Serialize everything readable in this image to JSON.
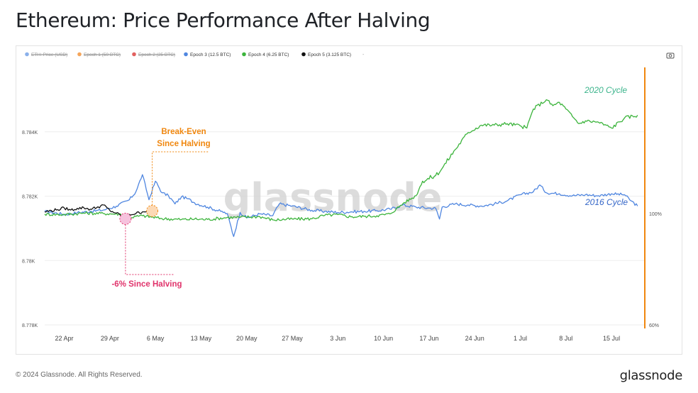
{
  "title": "Ethereum: Price Performance After Halving",
  "footer": {
    "copyright": "© 2024 Glassnode. All Rights Reserved.",
    "logo": "glassnode"
  },
  "watermark": "glassnode",
  "toolbar": {
    "camera_icon": "camera-icon"
  },
  "colors": {
    "epoch1": "#f5a55a",
    "epoch2": "#e2605f",
    "epoch3": "#4f86e0",
    "epoch4": "#3cb43c",
    "epoch5": "#111111",
    "eth": "#8ab0ea",
    "orange": "#f0870f",
    "pink": "#e0336b",
    "cycle2020": "#3cb48c",
    "cycle2016": "#3466c8"
  },
  "annotations": {
    "break_even": [
      "Break-Even",
      "Since Halving"
    ],
    "minus6": "-6% Since Halving",
    "cycle2020": "2020 Cycle",
    "cycle2016": "2016 Cycle"
  },
  "chart_data": {
    "type": "line",
    "legend": [
      {
        "label": "ETH: Price (USD)",
        "disabled": true,
        "color": "#8ab0ea"
      },
      {
        "label": "Epoch 1 (50 BTC)",
        "disabled": true,
        "color": "#f5a55a"
      },
      {
        "label": "Epoch 2 (25 BTC)",
        "disabled": true,
        "color": "#e2605f"
      },
      {
        "label": "Epoch 3 (12.5 BTC)",
        "disabled": false,
        "color": "#4f86e0"
      },
      {
        "label": "Epoch 4 (6.25 BTC)",
        "disabled": false,
        "color": "#3cb43c"
      },
      {
        "label": "Epoch 5 (3.125 BTC)",
        "disabled": false,
        "color": "#111111"
      },
      {
        "label": "-",
        "disabled": false,
        "color": "#999999"
      }
    ],
    "legend_position": "top-left",
    "grid": true,
    "x_ticks": [
      "22 Apr",
      "29 Apr",
      "6 May",
      "13 May",
      "20 May",
      "27 May",
      "3 Jun",
      "10 Jun",
      "17 Jun",
      "24 Jun",
      "1 Jul",
      "8 Jul",
      "15 Jul"
    ],
    "x_range_days": [
      -3,
      89
    ],
    "left_axis": {
      "ticks": [
        "8.778K",
        "8.78K",
        "8.782K",
        "8.784K"
      ],
      "values": [
        8778,
        8780,
        8782,
        8784
      ],
      "range": [
        8778,
        8786
      ]
    },
    "right_axis": {
      "ticks": [
        "60%",
        "100%"
      ],
      "values": [
        60,
        100
      ],
      "scale": "log"
    },
    "series": [
      {
        "name": "Epoch 3 (12.5 BTC)",
        "color": "#4f86e0",
        "points": [
          [
            -3,
            101
          ],
          [
            0,
            99.6
          ],
          [
            2,
            100.4
          ],
          [
            4,
            101.0
          ],
          [
            6,
            101.6
          ],
          [
            8,
            103.4
          ],
          [
            10,
            106.5
          ],
          [
            11,
            110.5
          ],
          [
            12,
            119.5
          ],
          [
            13,
            106.5
          ],
          [
            14,
            116
          ],
          [
            15,
            110
          ],
          [
            16,
            108.5
          ],
          [
            17,
            104.5
          ],
          [
            18,
            108
          ],
          [
            19,
            107
          ],
          [
            20,
            105
          ],
          [
            22,
            103
          ],
          [
            24,
            101
          ],
          [
            25,
            100
          ],
          [
            26,
            90
          ],
          [
            27,
            100.5
          ],
          [
            28,
            98
          ],
          [
            30,
            99.8
          ],
          [
            32,
            99
          ],
          [
            33,
            104.5
          ],
          [
            35,
            103.5
          ],
          [
            38,
            101.5
          ],
          [
            40,
            101
          ],
          [
            42,
            100.5
          ],
          [
            44,
            100.8
          ],
          [
            46,
            101
          ],
          [
            48,
            101.3
          ],
          [
            50,
            102
          ],
          [
            52,
            104
          ],
          [
            54,
            103
          ],
          [
            56,
            102.5
          ],
          [
            57,
            102.5
          ],
          [
            57.6,
            97.5
          ],
          [
            58,
            103
          ],
          [
            60,
            104.5
          ],
          [
            62,
            104
          ],
          [
            64,
            103.5
          ],
          [
            66,
            104.5
          ],
          [
            68,
            106
          ],
          [
            70,
            109
          ],
          [
            72,
            110.5
          ],
          [
            73,
            114
          ],
          [
            74,
            110
          ],
          [
            76,
            109.5
          ],
          [
            78,
            108.5
          ],
          [
            80,
            109
          ],
          [
            82,
            108.5
          ],
          [
            84,
            109.5
          ],
          [
            86,
            109
          ],
          [
            87,
            106
          ],
          [
            88,
            103.5
          ]
        ]
      },
      {
        "name": "Epoch 4 (6.25 BTC)",
        "color": "#3cb43c",
        "points": [
          [
            -3,
            99.7
          ],
          [
            0,
            99.5
          ],
          [
            3,
            100.2
          ],
          [
            6,
            100.0
          ],
          [
            9,
            99.7
          ],
          [
            10,
            98.2
          ],
          [
            12,
            99.0
          ],
          [
            15,
            97.7
          ],
          [
            18,
            97.3
          ],
          [
            20,
            97.5
          ],
          [
            22,
            97.3
          ],
          [
            25,
            98.2
          ],
          [
            27,
            98.3
          ],
          [
            30,
            98.6
          ],
          [
            32,
            97.1
          ],
          [
            35,
            97.5
          ],
          [
            38,
            97.6
          ],
          [
            40,
            99.2
          ],
          [
            42,
            99.5
          ],
          [
            44,
            98.5
          ],
          [
            46,
            98.7
          ],
          [
            48,
            99.0
          ],
          [
            50,
            99.8
          ],
          [
            52,
            104.7
          ],
          [
            54,
            108.5
          ],
          [
            55,
            116
          ],
          [
            57,
            119
          ],
          [
            58,
            123
          ],
          [
            60,
            134
          ],
          [
            62,
            145
          ],
          [
            64,
            150
          ],
          [
            66,
            150
          ],
          [
            68,
            151
          ],
          [
            70,
            149.5
          ],
          [
            71,
            148
          ],
          [
            72,
            161.5
          ],
          [
            74,
            168.5
          ],
          [
            75,
            164
          ],
          [
            76,
            166.5
          ],
          [
            77,
            161.5
          ],
          [
            78,
            156
          ],
          [
            79,
            151
          ],
          [
            80,
            153
          ],
          [
            82,
            152
          ],
          [
            84,
            148
          ],
          [
            86,
            155
          ],
          [
            88,
            157
          ]
        ]
      },
      {
        "name": "Epoch 5 (3.125 BTC)",
        "color": "#111111",
        "points": [
          [
            -3,
            100.8
          ],
          [
            -1,
            101.8
          ],
          [
            0,
            102.6
          ],
          [
            1,
            101.6
          ],
          [
            2,
            102.4
          ],
          [
            3,
            102.7
          ],
          [
            4,
            102.0
          ],
          [
            5,
            102.8
          ],
          [
            6,
            104.0
          ],
          [
            7,
            101.4
          ],
          [
            8,
            100.2
          ],
          [
            9,
            98.3
          ],
          [
            9.5,
            98.8
          ],
          [
            10,
            99.6
          ],
          [
            11,
            100.0
          ],
          [
            12,
            100.8
          ],
          [
            13,
            101.5
          ],
          [
            13.5,
            101.5
          ]
        ]
      }
    ]
  }
}
